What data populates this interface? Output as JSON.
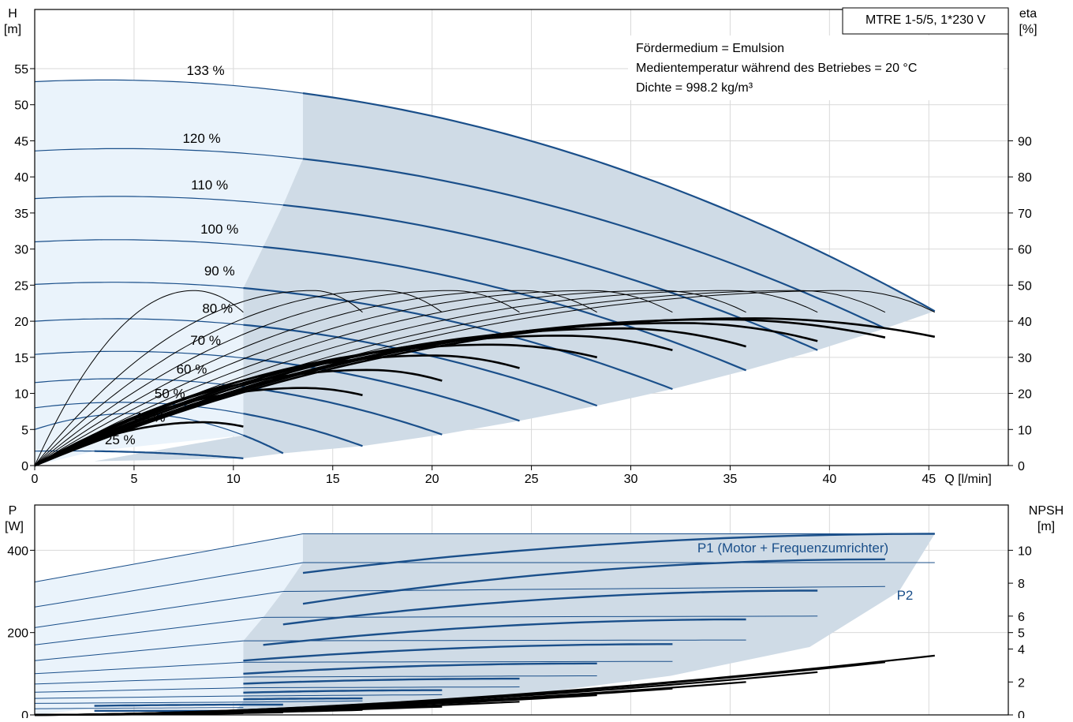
{
  "product_box": "MTRE 1-5/5, 1*230 V",
  "info_lines": [
    "Fördermedium = Emulsion",
    "Medientemperatur während des Betriebes = 20 °C",
    "Dichte = 998.2 kg/m³"
  ],
  "colors": {
    "curve_blue": "#1a4f8a",
    "fill_dark": "#cfdbe6",
    "fill_light": "#eaf3fb",
    "eta_black": "#000000",
    "grid": "#d9d9d9"
  },
  "chart_data": [
    {
      "type": "line",
      "name": "pump-head-efficiency",
      "y_axis_left": "H\n[m]",
      "y_axis_right": "eta\n[%]",
      "x_label": "Q [l/min]",
      "x_ticks": [
        0,
        5,
        10,
        15,
        20,
        25,
        30,
        35,
        40,
        45
      ],
      "y_ticks_left": [
        0,
        5,
        10,
        15,
        20,
        25,
        30,
        35,
        40,
        45,
        50,
        55
      ],
      "y_ticks_right": [
        0,
        10,
        20,
        30,
        40,
        50,
        60,
        70,
        80,
        90
      ],
      "xlim": [
        0,
        49
      ],
      "ylim": [
        0,
        63.2
      ],
      "eta_scale": 2,
      "speed_curves": [
        {
          "label": "133 %",
          "label_q": 8.6,
          "label_h": 54.8,
          "h0": 53.2,
          "q_op": 13.5,
          "h_op": 51.6,
          "q_end": 45.3,
          "h_end": 21.4,
          "k": 0
        },
        {
          "label": "120 %",
          "label_q": 8.4,
          "label_h": 45.4,
          "h0": 43.6,
          "q_op": 13.5,
          "h_op": 42.5,
          "q_end": 42.8,
          "h_end": 19.0,
          "k": 0
        },
        {
          "label": "110 %",
          "label_q": 8.8,
          "label_h": 38.9,
          "h0": 37.0,
          "q_op": 12.5,
          "h_op": 36.1,
          "q_end": 39.4,
          "h_end": 16.0,
          "k": 0
        },
        {
          "label": "100 %",
          "label_q": 9.3,
          "label_h": 32.8,
          "h0": 31.0,
          "q_op": 11.5,
          "h_op": 30.3,
          "q_end": 35.8,
          "h_end": 13.2,
          "k": 0
        },
        {
          "label": "90 %",
          "label_q": 9.3,
          "label_h": 27.0,
          "h0": 25.1,
          "q_op": 10.5,
          "h_op": 24.6,
          "q_end": 32.1,
          "h_end": 10.6,
          "k": 0
        },
        {
          "label": "80 %",
          "label_q": 9.2,
          "label_h": 21.8,
          "h0": 20.0,
          "q_op": 10.5,
          "h_op": 19.5,
          "q_end": 28.3,
          "h_end": 8.3,
          "k": 0
        },
        {
          "label": "70 %",
          "label_q": 8.6,
          "label_h": 17.4,
          "h0": 15.4,
          "q_op": 10.5,
          "h_op": 14.9,
          "q_end": 24.4,
          "h_end": 6.2,
          "k": 0
        },
        {
          "label": "60 %",
          "label_q": 7.9,
          "label_h": 13.4,
          "h0": 11.5,
          "q_op": 10.5,
          "h_op": 10.9,
          "q_end": 20.5,
          "h_end": 4.3,
          "k": 0
        },
        {
          "label": "50 %",
          "label_q": 6.8,
          "label_h": 10.0,
          "h0": 8.0,
          "q_op": 10.5,
          "h_op": 7.2,
          "q_end": 16.5,
          "h_end": 2.7,
          "k": 0
        },
        {
          "label": "40 %",
          "label_q": 5.8,
          "label_h": 6.7,
          "h0": 5.0,
          "q_op": 10.5,
          "h_op": 4.2,
          "q_end": 12.5,
          "h_end": 1.7,
          "k": 0
        },
        {
          "label": "25 %",
          "label_q": 4.3,
          "label_h": 3.6,
          "h0": 2.0,
          "q_op": 3.0,
          "h_op": 2.0,
          "q_end": 10.5,
          "h_end": 1.0,
          "k": 0
        }
      ],
      "eta_curves": [
        {
          "q_peak": 8.0,
          "eta_peak": 48.5,
          "q_end": 10.5,
          "eta_end": 42.5,
          "bold": false
        },
        {
          "q_peak": 14.0,
          "eta_peak": 48.5,
          "q_end": 16.5,
          "eta_end": 42.5,
          "bold": false
        },
        {
          "q_peak": 17.5,
          "eta_peak": 48.5,
          "q_end": 20.5,
          "eta_end": 42.5,
          "bold": false
        },
        {
          "q_peak": 21.0,
          "eta_peak": 48.5,
          "q_end": 24.4,
          "eta_end": 42.5,
          "bold": false
        },
        {
          "q_peak": 24.5,
          "eta_peak": 48.5,
          "q_end": 28.3,
          "eta_end": 42.5,
          "bold": false
        },
        {
          "q_peak": 28.0,
          "eta_peak": 48.5,
          "q_end": 32.1,
          "eta_end": 42.5,
          "bold": false
        },
        {
          "q_peak": 31.5,
          "eta_peak": 48.5,
          "q_end": 35.8,
          "eta_end": 42.5,
          "bold": false
        },
        {
          "q_peak": 35.0,
          "eta_peak": 48.5,
          "q_end": 39.4,
          "eta_end": 42.5,
          "bold": false
        },
        {
          "q_peak": 38.5,
          "eta_peak": 48.5,
          "q_end": 42.8,
          "eta_end": 42.5,
          "bold": false
        },
        {
          "q_peak": 41.0,
          "eta_peak": 48.5,
          "q_end": 45.3,
          "eta_end": 42.5,
          "bold": false
        },
        {
          "q_peak": 8.5,
          "eta_peak": 12.0,
          "q_end": 10.5,
          "eta_end": 10.8,
          "bold": true
        },
        {
          "q_peak": 13.5,
          "eta_peak": 21.5,
          "q_end": 16.5,
          "eta_end": 19.5,
          "bold": true
        },
        {
          "q_peak": 16.8,
          "eta_peak": 26.5,
          "q_end": 20.5,
          "eta_end": 23.5,
          "bold": true
        },
        {
          "q_peak": 20.0,
          "eta_peak": 30.5,
          "q_end": 24.4,
          "eta_end": 27.0,
          "bold": true
        },
        {
          "q_peak": 23.0,
          "eta_peak": 33.5,
          "q_end": 28.3,
          "eta_end": 30.0,
          "bold": true
        },
        {
          "q_peak": 26.5,
          "eta_peak": 36.0,
          "q_end": 32.1,
          "eta_end": 32.0,
          "bold": true
        },
        {
          "q_peak": 29.5,
          "eta_peak": 38.0,
          "q_end": 35.8,
          "eta_end": 33.0,
          "bold": true
        },
        {
          "q_peak": 32.5,
          "eta_peak": 39.5,
          "q_end": 39.4,
          "eta_end": 34.5,
          "bold": true
        },
        {
          "q_peak": 34.5,
          "eta_peak": 40.5,
          "q_end": 42.8,
          "eta_end": 35.5,
          "bold": true
        },
        {
          "q_peak": 36.0,
          "eta_peak": 40.8,
          "q_end": 45.3,
          "eta_end": 35.7,
          "bold": true
        }
      ]
    },
    {
      "type": "line",
      "name": "power-npsh",
      "y_axis_left": "P\n[W]",
      "y_axis_right": "NPSH\n[m]",
      "x_ticks": [
        0,
        5,
        10,
        15,
        20,
        25,
        30,
        35,
        40,
        45
      ],
      "y_ticks_left": [
        0,
        200,
        400
      ],
      "y_ticks_right": [
        0,
        2,
        4,
        5,
        6,
        8,
        10
      ],
      "xlim": [
        0,
        49
      ],
      "ylim": [
        0,
        510
      ],
      "npsh_scale": 40,
      "label_p1": "P1 (Motor + Frequenzumrichter)",
      "label_p2": "P2",
      "p1_curves": [
        {
          "p0": 323,
          "q_op": 13.5,
          "p_op": 440,
          "q_end": 45.3,
          "p_end": 440
        },
        {
          "p0": 262,
          "q_op": 13.5,
          "p_op": 370,
          "q_end": 45.3,
          "p_end": 370
        },
        {
          "p0": 212,
          "q_op": 12.5,
          "p_op": 300,
          "q_end": 42.8,
          "p_end": 312
        },
        {
          "p0": 170,
          "q_op": 11.5,
          "p_op": 237,
          "q_end": 39.4,
          "p_end": 240
        },
        {
          "p0": 132,
          "q_op": 10.5,
          "p_op": 180,
          "q_end": 35.8,
          "p_end": 182
        },
        {
          "p0": 100,
          "q_op": 10.5,
          "p_op": 128,
          "q_end": 32.1,
          "p_end": 130
        },
        {
          "p0": 75,
          "q_op": 10.5,
          "p_op": 92,
          "q_end": 28.3,
          "p_end": 95
        },
        {
          "p0": 55,
          "q_op": 10.5,
          "p_op": 66,
          "q_end": 24.4,
          "p_end": 68
        },
        {
          "p0": 40,
          "q_op": 10.5,
          "p_op": 46,
          "q_end": 20.5,
          "p_end": 49
        },
        {
          "p0": 28,
          "q_op": 10.5,
          "p_op": 31,
          "q_end": 16.5,
          "p_end": 34
        },
        {
          "p0": 15,
          "q_op": 3.0,
          "p_op": 16,
          "q_end": 10.5,
          "p_end": 18
        }
      ],
      "p2_curves": [
        {
          "p_start": 345,
          "q_start": 13.5,
          "q_end": 45.3,
          "p_end": 440
        },
        {
          "p_start": 270,
          "q_start": 13.5,
          "q_end": 42.8,
          "p_end": 378
        },
        {
          "p_start": 220,
          "q_start": 12.5,
          "q_end": 39.4,
          "p_end": 302
        },
        {
          "p_start": 170,
          "q_start": 11.5,
          "q_end": 35.8,
          "p_end": 232
        },
        {
          "p_start": 132,
          "q_start": 10.5,
          "q_end": 32.1,
          "p_end": 172
        },
        {
          "p_start": 100,
          "q_start": 10.5,
          "q_end": 28.3,
          "p_end": 125
        },
        {
          "p_start": 76,
          "q_start": 10.5,
          "q_end": 24.4,
          "p_end": 88
        },
        {
          "p_start": 54,
          "q_start": 10.5,
          "q_end": 20.5,
          "p_end": 60
        },
        {
          "p_start": 38,
          "q_start": 10.5,
          "q_end": 16.5,
          "p_end": 40
        },
        {
          "p_start": 22,
          "q_start": 3.0,
          "q_end": 12.5,
          "p_end": 25
        },
        {
          "p_start": 10,
          "q_start": 3.0,
          "q_end": 10.5,
          "p_end": 10
        }
      ],
      "npsh_curves": [
        {
          "q_end": 45.3,
          "npsh_end": 3.6
        },
        {
          "q_end": 42.8,
          "npsh_end": 3.2
        },
        {
          "q_end": 39.4,
          "npsh_end": 2.6
        },
        {
          "q_end": 35.8,
          "npsh_end": 2.0
        },
        {
          "q_end": 32.1,
          "npsh_end": 1.6
        },
        {
          "q_end": 28.3,
          "npsh_end": 1.2
        },
        {
          "q_end": 24.4,
          "npsh_end": 0.8
        },
        {
          "q_end": 20.5,
          "npsh_end": 0.5
        },
        {
          "q_end": 16.5,
          "npsh_end": 0.3
        },
        {
          "q_end": 12.5,
          "npsh_end": 0.15
        },
        {
          "q_end": 10.5,
          "npsh_end": 0.1
        }
      ]
    }
  ]
}
